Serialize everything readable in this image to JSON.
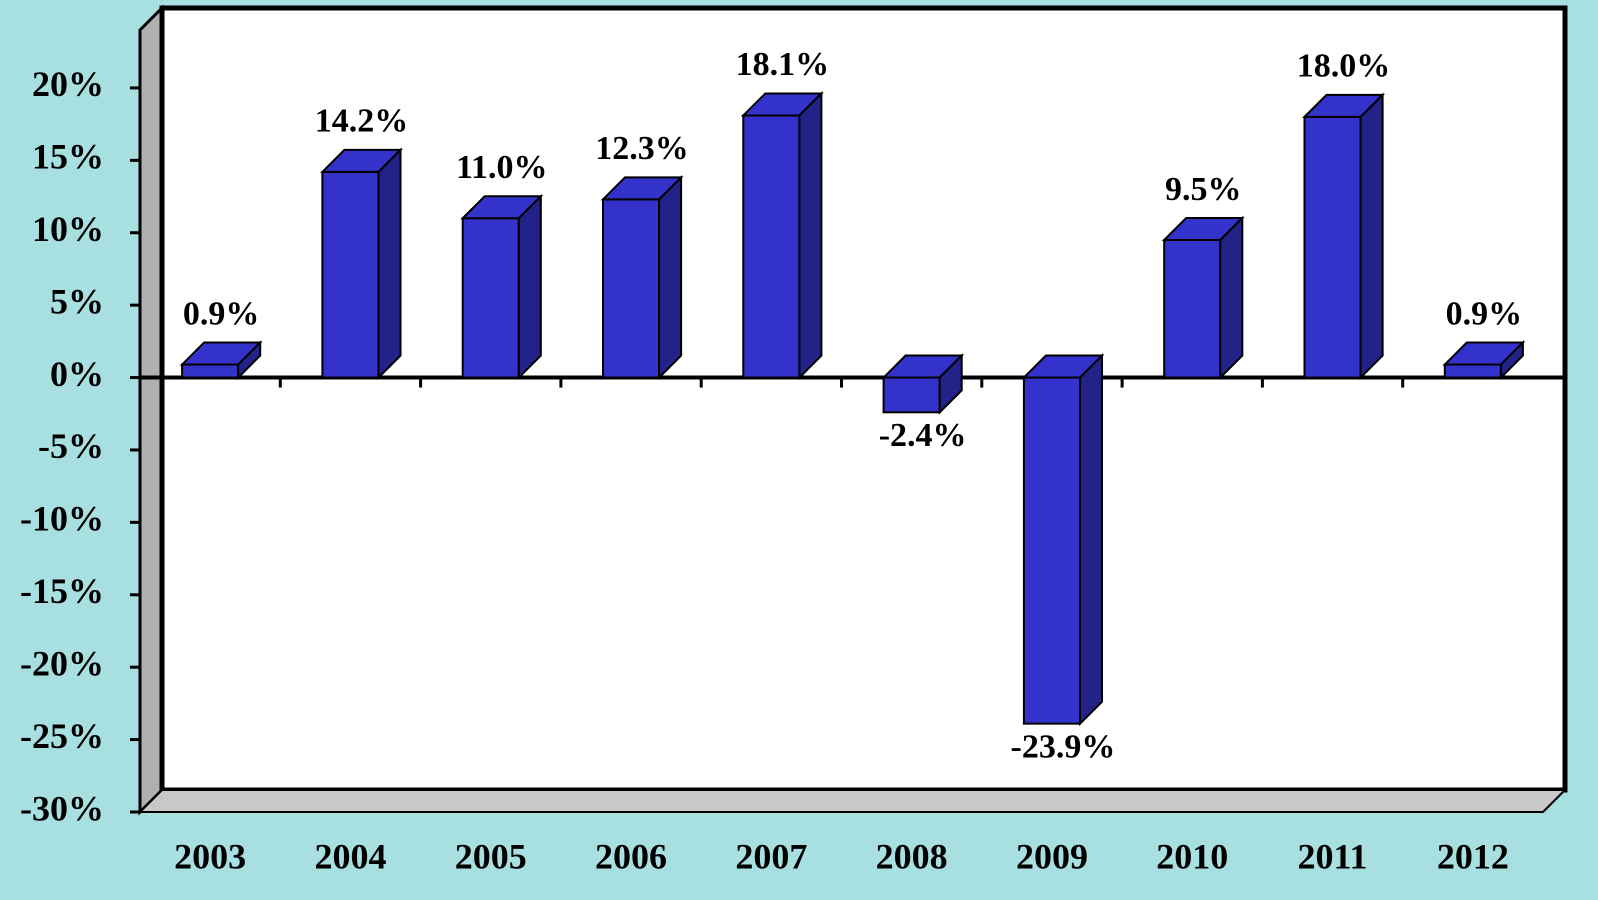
{
  "chart_data": {
    "type": "bar",
    "categories": [
      "2003",
      "2004",
      "2005",
      "2006",
      "2007",
      "2008",
      "2009",
      "2010",
      "2011",
      "2012"
    ],
    "values": [
      0.9,
      14.2,
      11.0,
      12.3,
      18.1,
      -2.4,
      -23.9,
      9.5,
      18.0,
      0.9
    ],
    "value_labels": [
      "0.9%",
      "14.2%",
      "11.0%",
      "12.3%",
      "18.1%",
      "-2.4%",
      "-23.9%",
      "9.5%",
      "18.0%",
      "0.9%"
    ],
    "color": "#3333cc",
    "ylim": [
      -30,
      24
    ],
    "yticks": [
      {
        "value": -30,
        "label": "-30%"
      },
      {
        "value": -25,
        "label": "-25%"
      },
      {
        "value": -20,
        "label": "-20%"
      },
      {
        "value": -15,
        "label": "-15%"
      },
      {
        "value": -10,
        "label": "-10%"
      },
      {
        "value": -5,
        "label": "-5%"
      },
      {
        "value": 0,
        "label": "0%"
      },
      {
        "value": 5,
        "label": "5%"
      },
      {
        "value": 10,
        "label": "10%"
      },
      {
        "value": 15,
        "label": "15%"
      },
      {
        "value": 20,
        "label": "20%"
      }
    ],
    "grid": false
  }
}
